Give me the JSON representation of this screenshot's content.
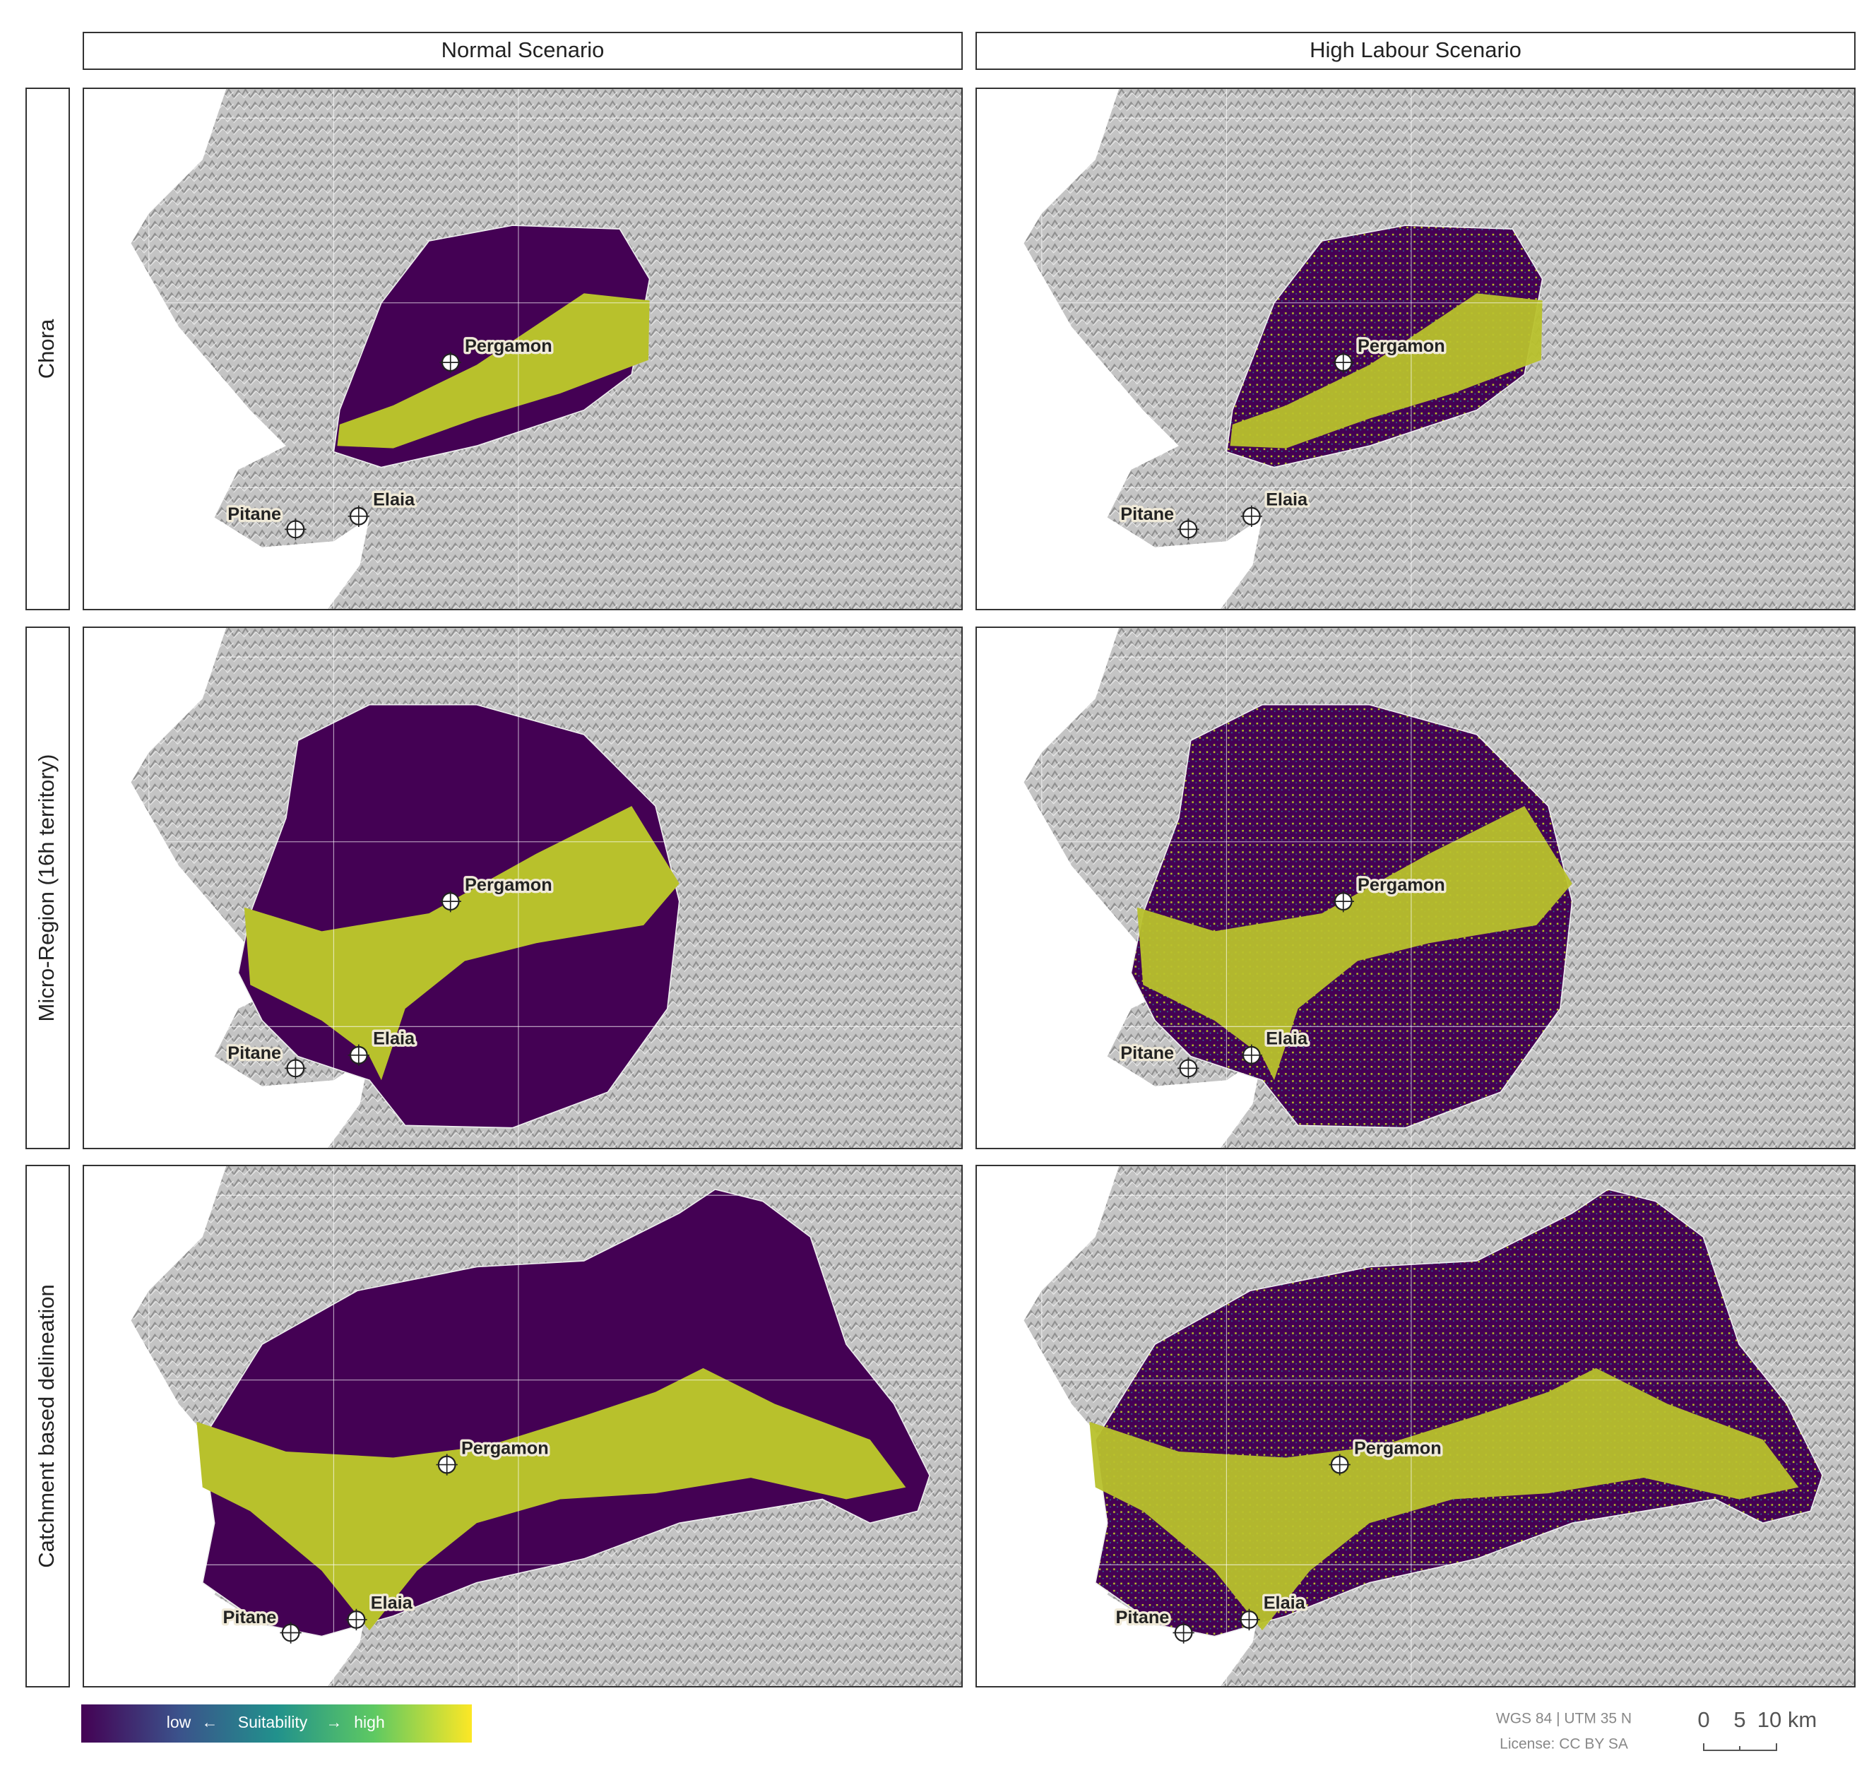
{
  "columns": [
    "Normal Scenario",
    "High Labour Scenario"
  ],
  "rows": [
    "Chora",
    "Micro-Region (16h territory)",
    "Catchment based delineation"
  ],
  "places": [
    "Pergamon",
    "Pitane",
    "Elaia"
  ],
  "legend": {
    "low": "low",
    "arrow_left": "←",
    "title": "Suitability",
    "arrow_right": "→",
    "high": "high"
  },
  "crs": "WGS 84 | UTM 35 N",
  "license": "License: CC BY SA",
  "scale_bar": [
    "0",
    "5",
    "10 km"
  ]
}
